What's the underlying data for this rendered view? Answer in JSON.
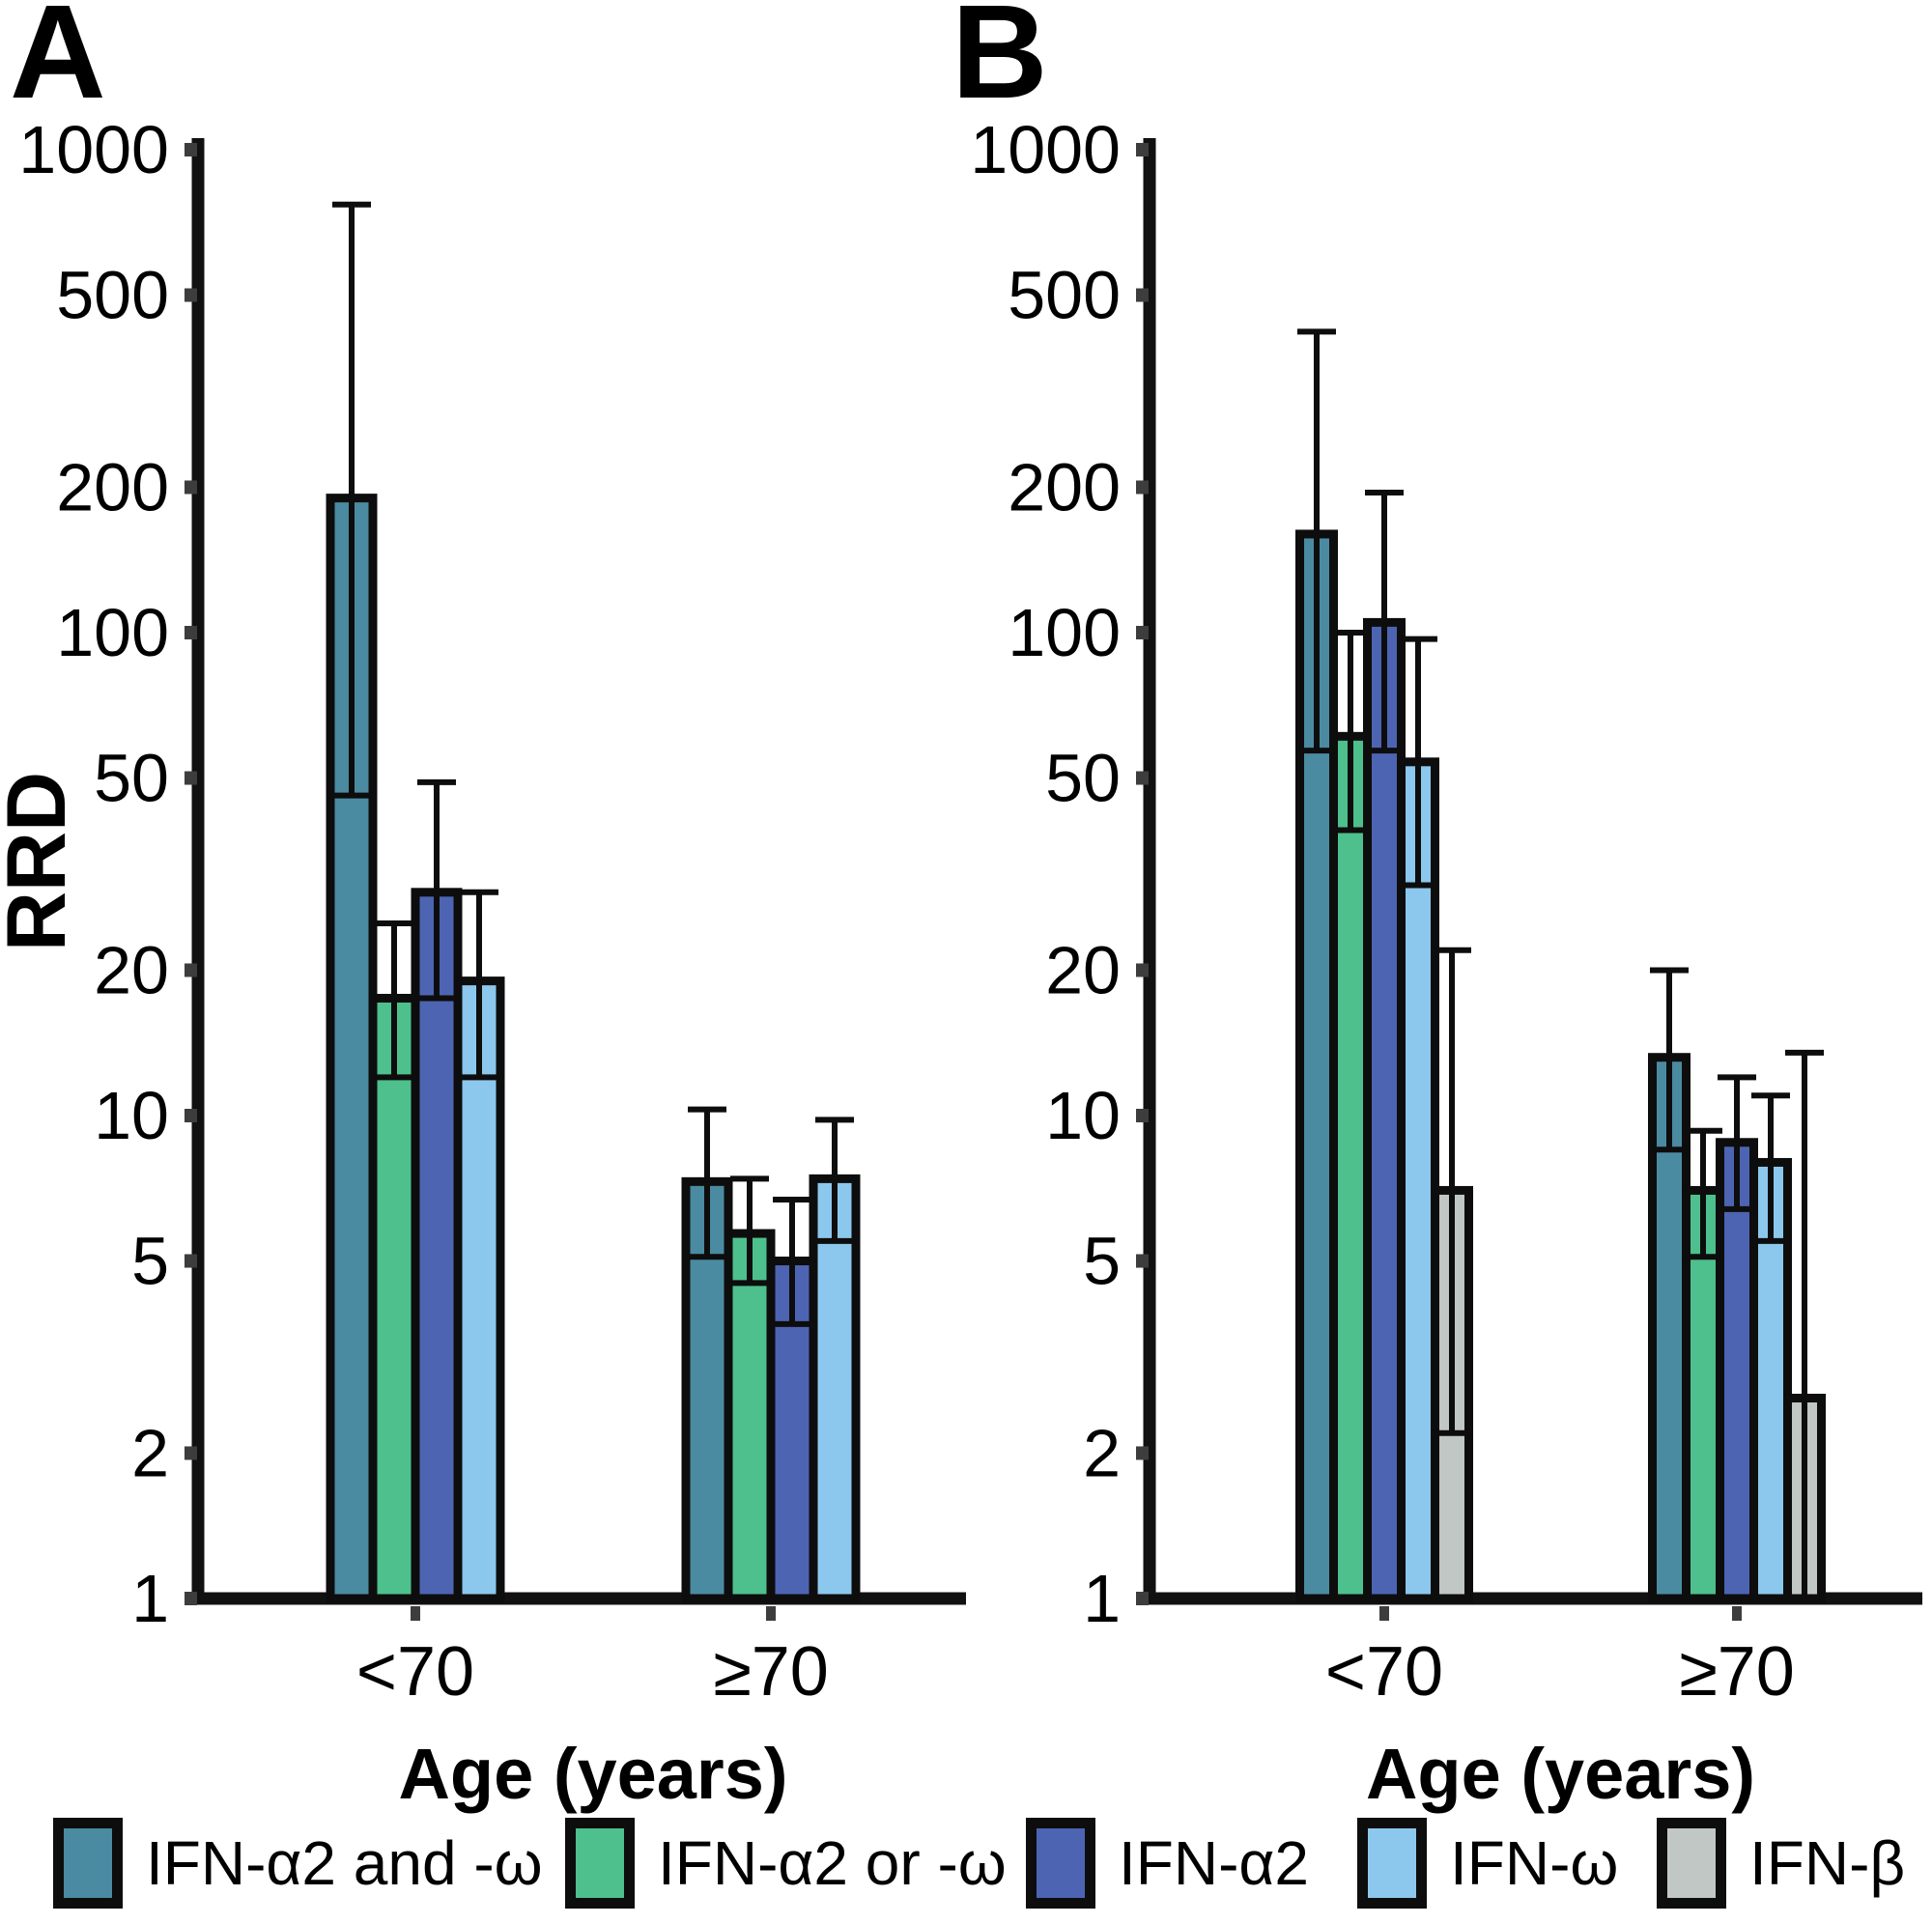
{
  "figure": {
    "y_axis_title": "RRD",
    "x_axis_title": "Age (years)",
    "background": "#ffffff",
    "axis_color": "#111111",
    "tick_mark_color": "#3d3d3d"
  },
  "legend": {
    "items": [
      {
        "label": "IFN-α2 and -ω",
        "color": "#4A8BA1"
      },
      {
        "label": "IFN-α2 or -ω",
        "color": "#4DC08D"
      },
      {
        "label": "IFN-α2",
        "color": "#4D64B2"
      },
      {
        "label": "IFN-ω",
        "color": "#8CC7ED"
      },
      {
        "label": "IFN-β",
        "color": "#C1C7C4"
      }
    ]
  },
  "chart_data": [
    {
      "panel_label": "A",
      "type": "bar",
      "y_scale": "log",
      "ylim": [
        1,
        1000
      ],
      "yticks": [
        1000,
        500,
        200,
        100,
        50,
        20,
        10,
        5,
        2,
        1
      ],
      "ylabel": "RRD",
      "xlabel": "Age (years)",
      "categories": [
        "<70",
        "≥70"
      ],
      "grid": false,
      "error_bars": true,
      "series": [
        {
          "name": "IFN-α2 and -ω",
          "color": "#4A8BA1",
          "values": [
            190,
            7.3
          ],
          "ci_low": [
            46,
            5.1
          ],
          "ci_high": [
            770,
            10.3
          ]
        },
        {
          "name": "IFN-α2 or -ω",
          "color": "#4DC08D",
          "values": [
            17.5,
            5.7
          ],
          "ci_low": [
            12,
            4.5
          ],
          "ci_high": [
            25,
            7.4
          ]
        },
        {
          "name": "IFN-α2",
          "color": "#4D64B2",
          "values": [
            29,
            5.0
          ],
          "ci_low": [
            17.5,
            3.7
          ],
          "ci_high": [
            49,
            6.7
          ]
        },
        {
          "name": "IFN-ω",
          "color": "#8CC7ED",
          "values": [
            19,
            7.4
          ],
          "ci_low": [
            12,
            5.5
          ],
          "ci_high": [
            29,
            9.8
          ]
        }
      ]
    },
    {
      "panel_label": "B",
      "type": "bar",
      "y_scale": "log",
      "ylim": [
        1,
        1000
      ],
      "yticks": [
        1000,
        500,
        200,
        100,
        50,
        20,
        10,
        5,
        2,
        1
      ],
      "ylabel": "RRD",
      "xlabel": "Age (years)",
      "categories": [
        "<70",
        "≥70"
      ],
      "grid": false,
      "error_bars": true,
      "series": [
        {
          "name": "IFN-α2 and -ω",
          "color": "#4A8BA1",
          "values": [
            160,
            13.2
          ],
          "ci_low": [
            57,
            8.5
          ],
          "ci_high": [
            420,
            20
          ]
        },
        {
          "name": "IFN-α2 or -ω",
          "color": "#4DC08D",
          "values": [
            61,
            7.0
          ],
          "ci_low": [
            39,
            5.1
          ],
          "ci_high": [
            100,
            9.3
          ]
        },
        {
          "name": "IFN-α2",
          "color": "#4D64B2",
          "values": [
            105,
            8.8
          ],
          "ci_low": [
            57,
            6.4
          ],
          "ci_high": [
            195,
            12
          ]
        },
        {
          "name": "IFN-ω",
          "color": "#8CC7ED",
          "values": [
            54,
            8.0
          ],
          "ci_low": [
            30,
            5.5
          ],
          "ci_high": [
            97,
            11
          ]
        },
        {
          "name": "IFN-β",
          "color": "#C1C7C4",
          "values": [
            7.0,
            2.6
          ],
          "ci_low": [
            2.2,
            1.0
          ],
          "ci_high": [
            22,
            13.5
          ]
        }
      ]
    }
  ]
}
